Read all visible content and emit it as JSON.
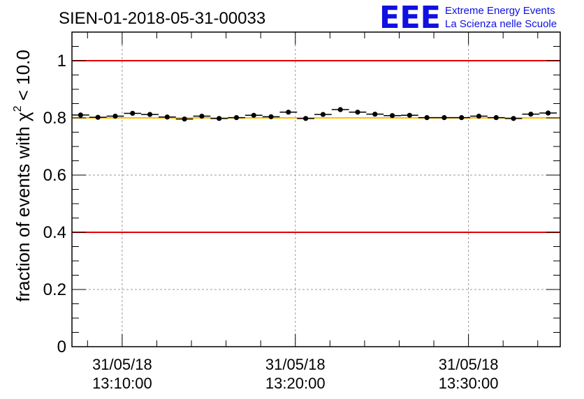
{
  "logo": {
    "letters": "EEE",
    "line1": "Extreme Energy Events",
    "line2": "La Scienza nelle Scuole",
    "color": "#1010e0"
  },
  "chart_data": {
    "type": "scatter",
    "title": "SIEN-01-2018-05-31-00033",
    "ylabel_prefix": "fraction of events with",
    "ylabel_chi": "χ",
    "ylabel_sup": "2",
    "ylabel_suffix": "< 10.0",
    "xlabel": "",
    "ylim": [
      0,
      1.1
    ],
    "yticks": [
      {
        "value": 0,
        "label": "0"
      },
      {
        "value": 0.2,
        "label": "0.2"
      },
      {
        "value": 0.4,
        "label": "0.4"
      },
      {
        "value": 0.6,
        "label": "0.6"
      },
      {
        "value": 0.8,
        "label": "0.8"
      },
      {
        "value": 1.0,
        "label": "1"
      }
    ],
    "xlim_minutes": [
      -2.9,
      25.3
    ],
    "xticks": [
      {
        "minute": 0,
        "date": "31/05/18",
        "time": "13:10:00"
      },
      {
        "minute": 10,
        "date": "31/05/18",
        "time": "13:20:00"
      },
      {
        "minute": 20,
        "date": "31/05/18",
        "time": "13:30:00"
      }
    ],
    "reference_lines": [
      {
        "y": 1.0,
        "color": "#e00000"
      },
      {
        "y": 0.4,
        "color": "#e00000"
      },
      {
        "y": 0.8,
        "color": "#ffc000"
      }
    ],
    "bin_width_minutes": 1.0,
    "grid": true,
    "series": [
      {
        "name": "fraction",
        "x_minutes": [
          -2.4,
          -1.4,
          -0.4,
          0.6,
          1.6,
          2.6,
          3.6,
          4.6,
          5.6,
          6.6,
          7.6,
          8.6,
          9.6,
          10.6,
          11.6,
          12.6,
          13.6,
          14.6,
          15.6,
          16.6,
          17.6,
          18.6,
          19.6,
          20.6,
          21.6,
          22.6,
          23.6,
          24.6
        ],
        "values": [
          0.81,
          0.802,
          0.806,
          0.816,
          0.812,
          0.803,
          0.796,
          0.806,
          0.798,
          0.801,
          0.809,
          0.804,
          0.82,
          0.798,
          0.812,
          0.829,
          0.82,
          0.813,
          0.808,
          0.809,
          0.801,
          0.801,
          0.801,
          0.806,
          0.801,
          0.798,
          0.813,
          0.817
        ]
      }
    ]
  }
}
